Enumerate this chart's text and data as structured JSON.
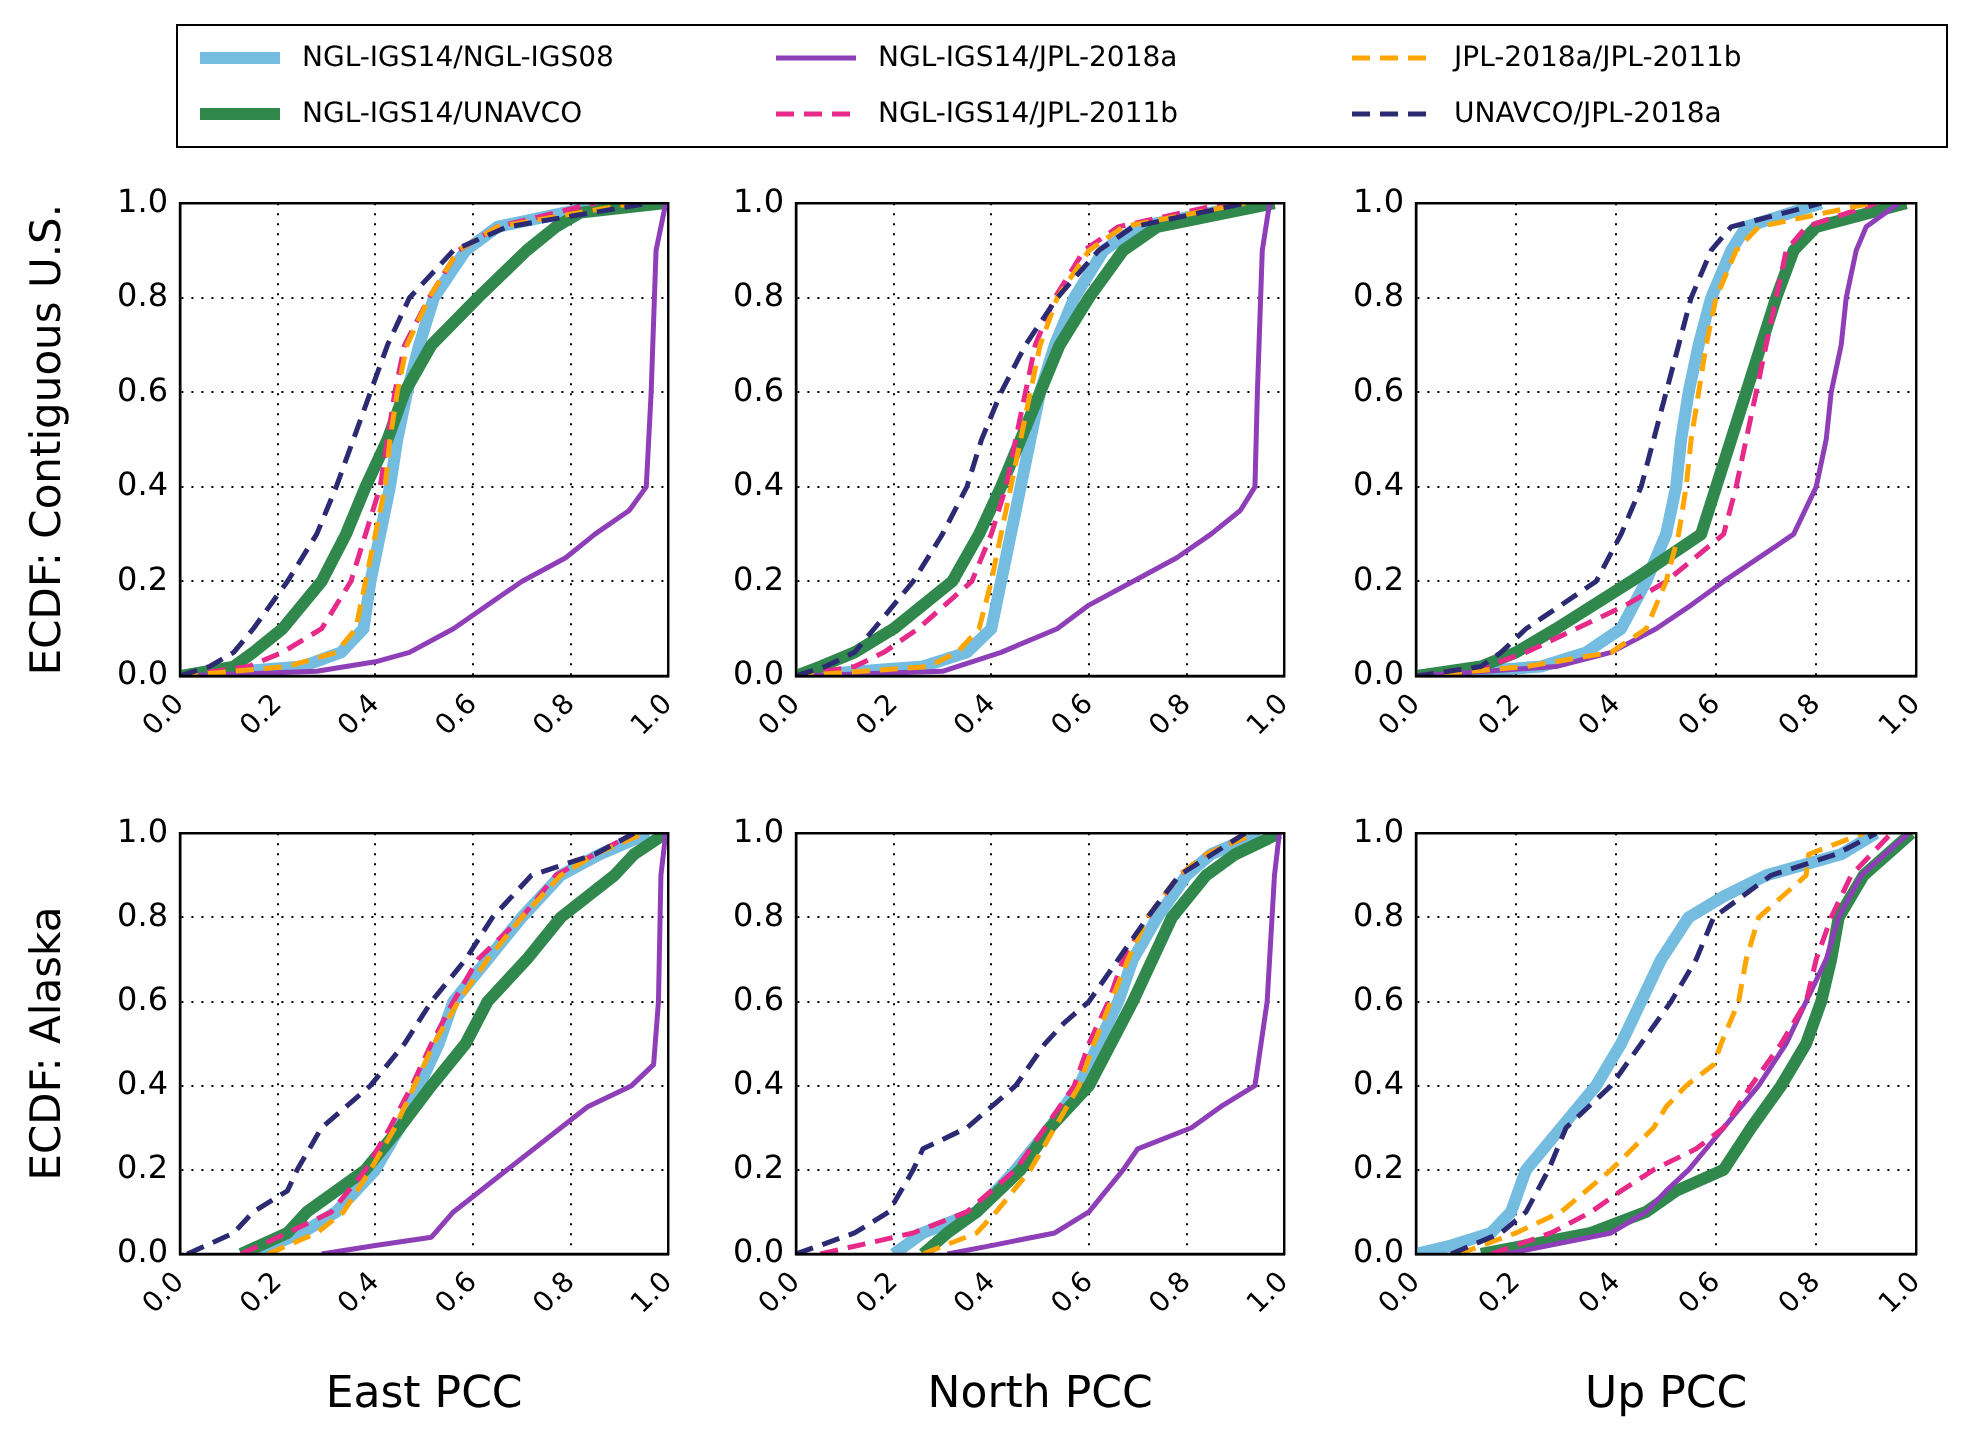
{
  "chart_data": [
    {
      "type": "line",
      "ylabel": "ECDF: Contiguous U.S.",
      "legend": "top",
      "grid": true,
      "xlim": [
        0,
        1
      ],
      "ylim": [
        0,
        1
      ],
      "xticks": [
        {
          "value": 0,
          "label": "0.0"
        },
        {
          "value": 0.2,
          "label": "0.2"
        },
        {
          "value": 0.4,
          "label": "0.4"
        },
        {
          "value": 0.6,
          "label": "0.6"
        },
        {
          "value": 0.8,
          "label": "0.8"
        },
        {
          "value": 1,
          "label": "1.0"
        }
      ],
      "yticks": [
        {
          "value": 0,
          "label": "0.0"
        },
        {
          "value": 0.2,
          "label": "0.2"
        },
        {
          "value": 0.4,
          "label": "0.4"
        },
        {
          "value": 0.6,
          "label": "0.6"
        },
        {
          "value": 0.8,
          "label": "0.8"
        },
        {
          "value": 1,
          "label": "1.0"
        }
      ],
      "series": [
        {
          "name": "NGL-IGS14/NGL-IGS08",
          "color": "#74bde0",
          "line_style": "solid",
          "x": [
            0,
            0.25,
            0.33,
            0.376,
            0.39,
            0.41,
            0.43,
            0.445,
            0.465,
            0.49,
            0.52,
            0.585,
            0.65,
            0.88
          ],
          "values": [
            0,
            0.02,
            0.05,
            0.1,
            0.2,
            0.3,
            0.4,
            0.5,
            0.6,
            0.7,
            0.8,
            0.9,
            0.95,
            1
          ]
        },
        {
          "name": "NGL-IGS14/UNAVCO",
          "color": "#31884d",
          "line_style": "solid",
          "x": [
            0,
            0.11,
            0.15,
            0.21,
            0.29,
            0.34,
            0.38,
            0.425,
            0.46,
            0.515,
            0.61,
            0.71,
            0.77,
            0.82,
            0.99
          ],
          "values": [
            0,
            0.02,
            0.05,
            0.1,
            0.2,
            0.3,
            0.4,
            0.5,
            0.6,
            0.7,
            0.8,
            0.9,
            0.95,
            0.98,
            1
          ]
        },
        {
          "name": "NGL-IGS14/JPL-2018a",
          "color": "#8e3fb8",
          "line_style": "solid",
          "x": [
            0,
            0.28,
            0.4,
            0.47,
            0.56,
            0.7,
            0.79,
            0.85,
            0.92,
            0.955,
            0.965,
            0.975,
            0.995
          ],
          "values": [
            0,
            0.01,
            0.03,
            0.05,
            0.1,
            0.2,
            0.25,
            0.3,
            0.35,
            0.4,
            0.6,
            0.9,
            1
          ]
        },
        {
          "name": "NGL-IGS14/JPL-2011b",
          "color": "#e7298a",
          "line_style": "dashed",
          "x": [
            0,
            0.14,
            0.21,
            0.29,
            0.35,
            0.38,
            0.41,
            0.425,
            0.44,
            0.46,
            0.51,
            0.57,
            0.65,
            0.85
          ],
          "values": [
            0,
            0.02,
            0.05,
            0.1,
            0.2,
            0.3,
            0.4,
            0.5,
            0.6,
            0.7,
            0.8,
            0.9,
            0.95,
            1
          ]
        },
        {
          "name": "JPL-2018a/JPL-2011b",
          "color": "#ffa500",
          "line_style": "dashed",
          "x": [
            0,
            0.22,
            0.32,
            0.36,
            0.38,
            0.4,
            0.42,
            0.43,
            0.445,
            0.465,
            0.51,
            0.57,
            0.65,
            0.93
          ],
          "values": [
            0,
            0.02,
            0.05,
            0.1,
            0.2,
            0.3,
            0.4,
            0.5,
            0.6,
            0.7,
            0.8,
            0.9,
            0.95,
            1
          ]
        },
        {
          "name": "UNAVCO/JPL-2018a",
          "color": "#2c2a73",
          "line_style": "dashed",
          "x": [
            0,
            0.06,
            0.11,
            0.15,
            0.22,
            0.28,
            0.32,
            0.355,
            0.39,
            0.425,
            0.47,
            0.56,
            0.67,
            0.96
          ],
          "values": [
            0,
            0.02,
            0.05,
            0.1,
            0.2,
            0.3,
            0.4,
            0.5,
            0.6,
            0.7,
            0.8,
            0.9,
            0.95,
            1
          ]
        }
      ]
    },
    {
      "type": "line",
      "grid": true,
      "xlim": [
        0,
        1
      ],
      "ylim": [
        0,
        1
      ],
      "xticks": [
        {
          "value": 0,
          "label": "0.0"
        },
        {
          "value": 0.2,
          "label": "0.2"
        },
        {
          "value": 0.4,
          "label": "0.4"
        },
        {
          "value": 0.6,
          "label": "0.6"
        },
        {
          "value": 0.8,
          "label": "0.8"
        },
        {
          "value": 1,
          "label": "1.0"
        }
      ],
      "yticks": [
        {
          "value": 0,
          "label": "0.0"
        },
        {
          "value": 0.2,
          "label": "0.2"
        },
        {
          "value": 0.4,
          "label": "0.4"
        },
        {
          "value": 0.6,
          "label": "0.6"
        },
        {
          "value": 0.8,
          "label": "0.8"
        },
        {
          "value": 1,
          "label": "1.0"
        }
      ],
      "series": [
        {
          "color": "#74bde0",
          "line_style": "solid",
          "x": [
            0,
            0.26,
            0.35,
            0.4,
            0.42,
            0.44,
            0.46,
            0.48,
            0.5,
            0.53,
            0.57,
            0.63,
            0.7,
            0.95
          ],
          "values": [
            0,
            0.02,
            0.05,
            0.1,
            0.2,
            0.3,
            0.4,
            0.5,
            0.6,
            0.7,
            0.8,
            0.9,
            0.95,
            1
          ]
        },
        {
          "color": "#31884d",
          "line_style": "solid",
          "x": [
            0,
            0.05,
            0.12,
            0.2,
            0.32,
            0.375,
            0.42,
            0.46,
            0.5,
            0.54,
            0.6,
            0.67,
            0.74,
            0.98
          ],
          "values": [
            0,
            0.02,
            0.05,
            0.1,
            0.2,
            0.3,
            0.4,
            0.5,
            0.6,
            0.7,
            0.8,
            0.9,
            0.95,
            1
          ]
        },
        {
          "color": "#8e3fb8",
          "line_style": "solid",
          "x": [
            0,
            0.3,
            0.42,
            0.535,
            0.6,
            0.69,
            0.78,
            0.85,
            0.91,
            0.94,
            0.945,
            0.955,
            0.97
          ],
          "values": [
            0,
            0.01,
            0.05,
            0.1,
            0.15,
            0.2,
            0.25,
            0.3,
            0.35,
            0.4,
            0.6,
            0.9,
            1
          ]
        },
        {
          "color": "#e7298a",
          "line_style": "dashed",
          "x": [
            0,
            0.12,
            0.18,
            0.25,
            0.36,
            0.4,
            0.43,
            0.45,
            0.47,
            0.49,
            0.53,
            0.59,
            0.66,
            0.88
          ],
          "values": [
            0,
            0.02,
            0.05,
            0.1,
            0.2,
            0.3,
            0.4,
            0.5,
            0.6,
            0.7,
            0.8,
            0.9,
            0.95,
            1
          ]
        },
        {
          "color": "#ffa500",
          "line_style": "dashed",
          "x": [
            0,
            0.27,
            0.33,
            0.375,
            0.4,
            0.42,
            0.44,
            0.46,
            0.48,
            0.5,
            0.535,
            0.6,
            0.67,
            0.92
          ],
          "values": [
            0,
            0.02,
            0.05,
            0.1,
            0.2,
            0.3,
            0.4,
            0.5,
            0.6,
            0.7,
            0.8,
            0.9,
            0.95,
            1
          ]
        },
        {
          "color": "#2c2a73",
          "line_style": "dashed",
          "x": [
            0,
            0.06,
            0.12,
            0.16,
            0.24,
            0.3,
            0.35,
            0.38,
            0.42,
            0.47,
            0.535,
            0.62,
            0.69,
            0.92
          ],
          "values": [
            0,
            0.02,
            0.05,
            0.1,
            0.2,
            0.3,
            0.4,
            0.5,
            0.6,
            0.7,
            0.8,
            0.9,
            0.95,
            1
          ]
        }
      ]
    },
    {
      "type": "line",
      "grid": true,
      "xlim": [
        0,
        1
      ],
      "ylim": [
        0,
        1
      ],
      "xticks": [
        {
          "value": 0,
          "label": "0.0"
        },
        {
          "value": 0.2,
          "label": "0.2"
        },
        {
          "value": 0.4,
          "label": "0.4"
        },
        {
          "value": 0.6,
          "label": "0.6"
        },
        {
          "value": 0.8,
          "label": "0.8"
        },
        {
          "value": 1,
          "label": "1.0"
        }
      ],
      "yticks": [
        {
          "value": 0,
          "label": "0.0"
        },
        {
          "value": 0.2,
          "label": "0.2"
        },
        {
          "value": 0.4,
          "label": "0.4"
        },
        {
          "value": 0.6,
          "label": "0.6"
        },
        {
          "value": 0.8,
          "label": "0.8"
        },
        {
          "value": 1,
          "label": "1.0"
        }
      ],
      "series": [
        {
          "color": "#74bde0",
          "line_style": "solid",
          "x": [
            0,
            0.25,
            0.34,
            0.41,
            0.46,
            0.5,
            0.52,
            0.53,
            0.545,
            0.565,
            0.59,
            0.63,
            0.66,
            0.81
          ],
          "values": [
            0,
            0.02,
            0.05,
            0.1,
            0.2,
            0.3,
            0.4,
            0.5,
            0.6,
            0.7,
            0.8,
            0.9,
            0.95,
            1
          ]
        },
        {
          "color": "#31884d",
          "line_style": "solid",
          "x": [
            0,
            0.13,
            0.2,
            0.28,
            0.43,
            0.57,
            0.6,
            0.63,
            0.66,
            0.69,
            0.72,
            0.755,
            0.8,
            0.98
          ],
          "values": [
            0,
            0.02,
            0.05,
            0.1,
            0.2,
            0.3,
            0.4,
            0.5,
            0.6,
            0.7,
            0.8,
            0.9,
            0.95,
            1
          ]
        },
        {
          "color": "#8e3fb8",
          "line_style": "solid",
          "x": [
            0,
            0.28,
            0.39,
            0.48,
            0.55,
            0.615,
            0.755,
            0.8,
            0.82,
            0.83,
            0.85,
            0.86,
            0.88,
            0.9,
            0.965
          ],
          "values": [
            0,
            0.02,
            0.05,
            0.1,
            0.15,
            0.2,
            0.3,
            0.4,
            0.5,
            0.6,
            0.7,
            0.8,
            0.9,
            0.95,
            1
          ]
        },
        {
          "color": "#e7298a",
          "line_style": "dashed",
          "x": [
            0,
            0.14,
            0.22,
            0.32,
            0.42,
            0.5,
            0.615,
            0.64,
            0.66,
            0.68,
            0.7,
            0.72,
            0.74,
            0.78,
            0.92
          ],
          "values": [
            0,
            0.02,
            0.05,
            0.1,
            0.15,
            0.2,
            0.3,
            0.4,
            0.5,
            0.6,
            0.7,
            0.8,
            0.9,
            0.95,
            1
          ]
        },
        {
          "color": "#ffa500",
          "line_style": "dashed",
          "x": [
            0,
            0.22,
            0.39,
            0.46,
            0.5,
            0.525,
            0.54,
            0.55,
            0.565,
            0.58,
            0.6,
            0.64,
            0.685,
            0.91
          ],
          "values": [
            0,
            0.02,
            0.05,
            0.1,
            0.2,
            0.3,
            0.4,
            0.5,
            0.6,
            0.7,
            0.8,
            0.9,
            0.95,
            1
          ]
        },
        {
          "color": "#2c2a73",
          "line_style": "dashed",
          "x": [
            0,
            0.13,
            0.17,
            0.22,
            0.36,
            0.41,
            0.45,
            0.475,
            0.5,
            0.525,
            0.55,
            0.59,
            0.63,
            0.81
          ],
          "values": [
            0,
            0.02,
            0.05,
            0.1,
            0.2,
            0.3,
            0.4,
            0.5,
            0.6,
            0.7,
            0.8,
            0.9,
            0.95,
            1
          ]
        }
      ]
    },
    {
      "type": "line",
      "ylabel": "ECDF: Alaska",
      "xlabel": "East PCC",
      "grid": true,
      "xlim": [
        0,
        1
      ],
      "ylim": [
        0,
        1
      ],
      "xticks": [
        {
          "value": 0,
          "label": "0.0"
        },
        {
          "value": 0.2,
          "label": "0.2"
        },
        {
          "value": 0.4,
          "label": "0.4"
        },
        {
          "value": 0.6,
          "label": "0.6"
        },
        {
          "value": 0.8,
          "label": "0.8"
        },
        {
          "value": 1,
          "label": "1.0"
        }
      ],
      "yticks": [
        {
          "value": 0,
          "label": "0.0"
        },
        {
          "value": 0.2,
          "label": "0.2"
        },
        {
          "value": 0.4,
          "label": "0.4"
        },
        {
          "value": 0.6,
          "label": "0.6"
        },
        {
          "value": 0.8,
          "label": "0.8"
        },
        {
          "value": 1,
          "label": "1.0"
        }
      ],
      "series": [
        {
          "color": "#74bde0",
          "line_style": "solid",
          "x": [
            0.14,
            0.25,
            0.32,
            0.4,
            0.45,
            0.49,
            0.53,
            0.56,
            0.63,
            0.7,
            0.78,
            0.86,
            0.96
          ],
          "values": [
            0,
            0.05,
            0.1,
            0.2,
            0.3,
            0.4,
            0.5,
            0.6,
            0.7,
            0.8,
            0.9,
            0.95,
            1
          ]
        },
        {
          "color": "#31884d",
          "line_style": "solid",
          "x": [
            0.125,
            0.22,
            0.26,
            0.38,
            0.45,
            0.515,
            0.585,
            0.63,
            0.71,
            0.78,
            0.89,
            0.93,
            0.995
          ],
          "values": [
            0,
            0.05,
            0.1,
            0.2,
            0.3,
            0.4,
            0.5,
            0.6,
            0.7,
            0.8,
            0.9,
            0.95,
            1
          ]
        },
        {
          "color": "#8e3fb8",
          "line_style": "solid",
          "x": [
            0.29,
            0.4,
            0.515,
            0.56,
            0.67,
            0.78,
            0.835,
            0.925,
            0.97,
            0.98,
            0.985,
            0.995
          ],
          "values": [
            0,
            0.02,
            0.04,
            0.1,
            0.2,
            0.3,
            0.35,
            0.4,
            0.45,
            0.6,
            0.9,
            1
          ]
        },
        {
          "color": "#e7298a",
          "line_style": "dashed",
          "x": [
            0.125,
            0.22,
            0.31,
            0.38,
            0.43,
            0.475,
            0.515,
            0.56,
            0.61,
            0.7,
            0.77,
            0.85,
            0.93
          ],
          "values": [
            0,
            0.05,
            0.1,
            0.2,
            0.3,
            0.4,
            0.5,
            0.6,
            0.7,
            0.8,
            0.9,
            0.95,
            1
          ]
        },
        {
          "color": "#ffa500",
          "line_style": "dashed",
          "x": [
            0.18,
            0.28,
            0.335,
            0.39,
            0.44,
            0.48,
            0.52,
            0.57,
            0.63,
            0.7,
            0.78,
            0.85,
            0.95
          ],
          "values": [
            0,
            0.05,
            0.1,
            0.2,
            0.3,
            0.4,
            0.5,
            0.6,
            0.7,
            0.8,
            0.9,
            0.95,
            1
          ]
        },
        {
          "color": "#2c2a73",
          "line_style": "dashed",
          "x": [
            0.015,
            0.11,
            0.15,
            0.22,
            0.24,
            0.29,
            0.39,
            0.46,
            0.515,
            0.585,
            0.64,
            0.72,
            0.85,
            0.93
          ],
          "values": [
            0,
            0.05,
            0.1,
            0.15,
            0.2,
            0.3,
            0.4,
            0.5,
            0.6,
            0.7,
            0.8,
            0.9,
            0.95,
            1
          ]
        }
      ]
    },
    {
      "type": "line",
      "xlabel": "North PCC",
      "grid": true,
      "xlim": [
        0,
        1
      ],
      "ylim": [
        0,
        1
      ],
      "xticks": [
        {
          "value": 0,
          "label": "0.0"
        },
        {
          "value": 0.2,
          "label": "0.2"
        },
        {
          "value": 0.4,
          "label": "0.4"
        },
        {
          "value": 0.6,
          "label": "0.6"
        },
        {
          "value": 0.8,
          "label": "0.8"
        },
        {
          "value": 1,
          "label": "1.0"
        }
      ],
      "yticks": [
        {
          "value": 0,
          "label": "0.0"
        },
        {
          "value": 0.2,
          "label": "0.2"
        },
        {
          "value": 0.4,
          "label": "0.4"
        },
        {
          "value": 0.6,
          "label": "0.6"
        },
        {
          "value": 0.8,
          "label": "0.8"
        },
        {
          "value": 1,
          "label": "1.0"
        }
      ],
      "series": [
        {
          "color": "#74bde0",
          "line_style": "solid",
          "x": [
            0.2,
            0.26,
            0.37,
            0.45,
            0.52,
            0.58,
            0.62,
            0.66,
            0.69,
            0.74,
            0.8,
            0.85,
            0.95
          ],
          "values": [
            0,
            0.05,
            0.1,
            0.2,
            0.3,
            0.4,
            0.5,
            0.6,
            0.7,
            0.8,
            0.9,
            0.95,
            1
          ]
        },
        {
          "color": "#31884d",
          "line_style": "solid",
          "x": [
            0.26,
            0.31,
            0.37,
            0.46,
            0.52,
            0.6,
            0.645,
            0.69,
            0.73,
            0.77,
            0.84,
            0.9,
            0.99
          ],
          "values": [
            0,
            0.05,
            0.1,
            0.2,
            0.3,
            0.4,
            0.5,
            0.6,
            0.7,
            0.8,
            0.9,
            0.95,
            1
          ]
        },
        {
          "color": "#8e3fb8",
          "line_style": "solid",
          "x": [
            0.31,
            0.4,
            0.53,
            0.6,
            0.67,
            0.7,
            0.81,
            0.87,
            0.94,
            0.965,
            0.98,
            0.99
          ],
          "values": [
            0,
            0.02,
            0.05,
            0.1,
            0.2,
            0.25,
            0.3,
            0.35,
            0.4,
            0.6,
            0.9,
            1
          ]
        },
        {
          "color": "#e7298a",
          "line_style": "dashed",
          "x": [
            0.05,
            0.24,
            0.35,
            0.45,
            0.51,
            0.57,
            0.6,
            0.64,
            0.67,
            0.72,
            0.785,
            0.84,
            0.94
          ],
          "values": [
            0,
            0.05,
            0.1,
            0.2,
            0.3,
            0.4,
            0.5,
            0.6,
            0.7,
            0.8,
            0.9,
            0.95,
            1
          ]
        },
        {
          "color": "#ffa500",
          "line_style": "dashed",
          "x": [
            0.26,
            0.37,
            0.41,
            0.48,
            0.53,
            0.58,
            0.61,
            0.645,
            0.68,
            0.72,
            0.785,
            0.84,
            0.94
          ],
          "values": [
            0,
            0.05,
            0.1,
            0.2,
            0.3,
            0.4,
            0.5,
            0.6,
            0.7,
            0.8,
            0.9,
            0.95,
            1
          ]
        },
        {
          "color": "#2c2a73",
          "line_style": "dashed",
          "x": [
            0,
            0.12,
            0.19,
            0.24,
            0.26,
            0.35,
            0.45,
            0.51,
            0.55,
            0.6,
            0.66,
            0.72,
            0.785,
            0.92
          ],
          "values": [
            0,
            0.05,
            0.1,
            0.2,
            0.25,
            0.3,
            0.4,
            0.5,
            0.55,
            0.6,
            0.7,
            0.8,
            0.9,
            1
          ]
        }
      ]
    },
    {
      "type": "line",
      "xlabel": "Up PCC",
      "grid": true,
      "xlim": [
        0,
        1
      ],
      "ylim": [
        0,
        1
      ],
      "xticks": [
        {
          "value": 0,
          "label": "0.0"
        },
        {
          "value": 0.2,
          "label": "0.2"
        },
        {
          "value": 0.4,
          "label": "0.4"
        },
        {
          "value": 0.6,
          "label": "0.6"
        },
        {
          "value": 0.8,
          "label": "0.8"
        },
        {
          "value": 1,
          "label": "1.0"
        }
      ],
      "yticks": [
        {
          "value": 0,
          "label": "0.0"
        },
        {
          "value": 0.2,
          "label": "0.2"
        },
        {
          "value": 0.4,
          "label": "0.4"
        },
        {
          "value": 0.6,
          "label": "0.6"
        },
        {
          "value": 0.8,
          "label": "0.8"
        },
        {
          "value": 1,
          "label": "1.0"
        }
      ],
      "series": [
        {
          "color": "#74bde0",
          "line_style": "solid",
          "x": [
            0,
            0.07,
            0.15,
            0.19,
            0.22,
            0.29,
            0.36,
            0.41,
            0.45,
            0.49,
            0.545,
            0.615,
            0.7,
            0.85,
            0.92
          ],
          "values": [
            0,
            0.02,
            0.05,
            0.1,
            0.2,
            0.3,
            0.4,
            0.5,
            0.6,
            0.7,
            0.8,
            0.85,
            0.9,
            0.95,
            1
          ]
        },
        {
          "color": "#31884d",
          "line_style": "solid",
          "x": [
            0.13,
            0.35,
            0.46,
            0.52,
            0.615,
            0.67,
            0.73,
            0.78,
            0.81,
            0.83,
            0.845,
            0.895,
            0.99
          ],
          "values": [
            0,
            0.05,
            0.1,
            0.15,
            0.2,
            0.3,
            0.4,
            0.5,
            0.6,
            0.7,
            0.8,
            0.9,
            1
          ]
        },
        {
          "color": "#8e3fb8",
          "line_style": "solid",
          "x": [
            0.18,
            0.39,
            0.46,
            0.5,
            0.545,
            0.615,
            0.685,
            0.74,
            0.78,
            0.82,
            0.845,
            0.89,
            0.985
          ],
          "values": [
            0,
            0.05,
            0.1,
            0.15,
            0.2,
            0.3,
            0.4,
            0.5,
            0.6,
            0.7,
            0.8,
            0.9,
            1
          ]
        },
        {
          "color": "#e7298a",
          "line_style": "dashed",
          "x": [
            0.15,
            0.27,
            0.35,
            0.41,
            0.475,
            0.56,
            0.615,
            0.67,
            0.73,
            0.78,
            0.8,
            0.83,
            0.87,
            0.95
          ],
          "values": [
            0,
            0.05,
            0.1,
            0.15,
            0.2,
            0.25,
            0.3,
            0.4,
            0.5,
            0.6,
            0.7,
            0.8,
            0.9,
            1
          ]
        },
        {
          "color": "#ffa500",
          "line_style": "dashed",
          "x": [
            0.085,
            0.2,
            0.29,
            0.39,
            0.475,
            0.5,
            0.54,
            0.595,
            0.61,
            0.645,
            0.66,
            0.685,
            0.78,
            0.785,
            0.895
          ],
          "values": [
            0,
            0.05,
            0.1,
            0.2,
            0.3,
            0.35,
            0.4,
            0.45,
            0.5,
            0.6,
            0.7,
            0.8,
            0.9,
            0.95,
            1
          ]
        },
        {
          "color": "#2c2a73",
          "line_style": "dashed",
          "x": [
            0.07,
            0.17,
            0.22,
            0.265,
            0.3,
            0.39,
            0.45,
            0.51,
            0.56,
            0.595,
            0.71,
            0.84,
            0.92
          ],
          "values": [
            0,
            0.05,
            0.1,
            0.2,
            0.3,
            0.4,
            0.5,
            0.6,
            0.7,
            0.8,
            0.9,
            0.95,
            1
          ]
        }
      ]
    }
  ]
}
